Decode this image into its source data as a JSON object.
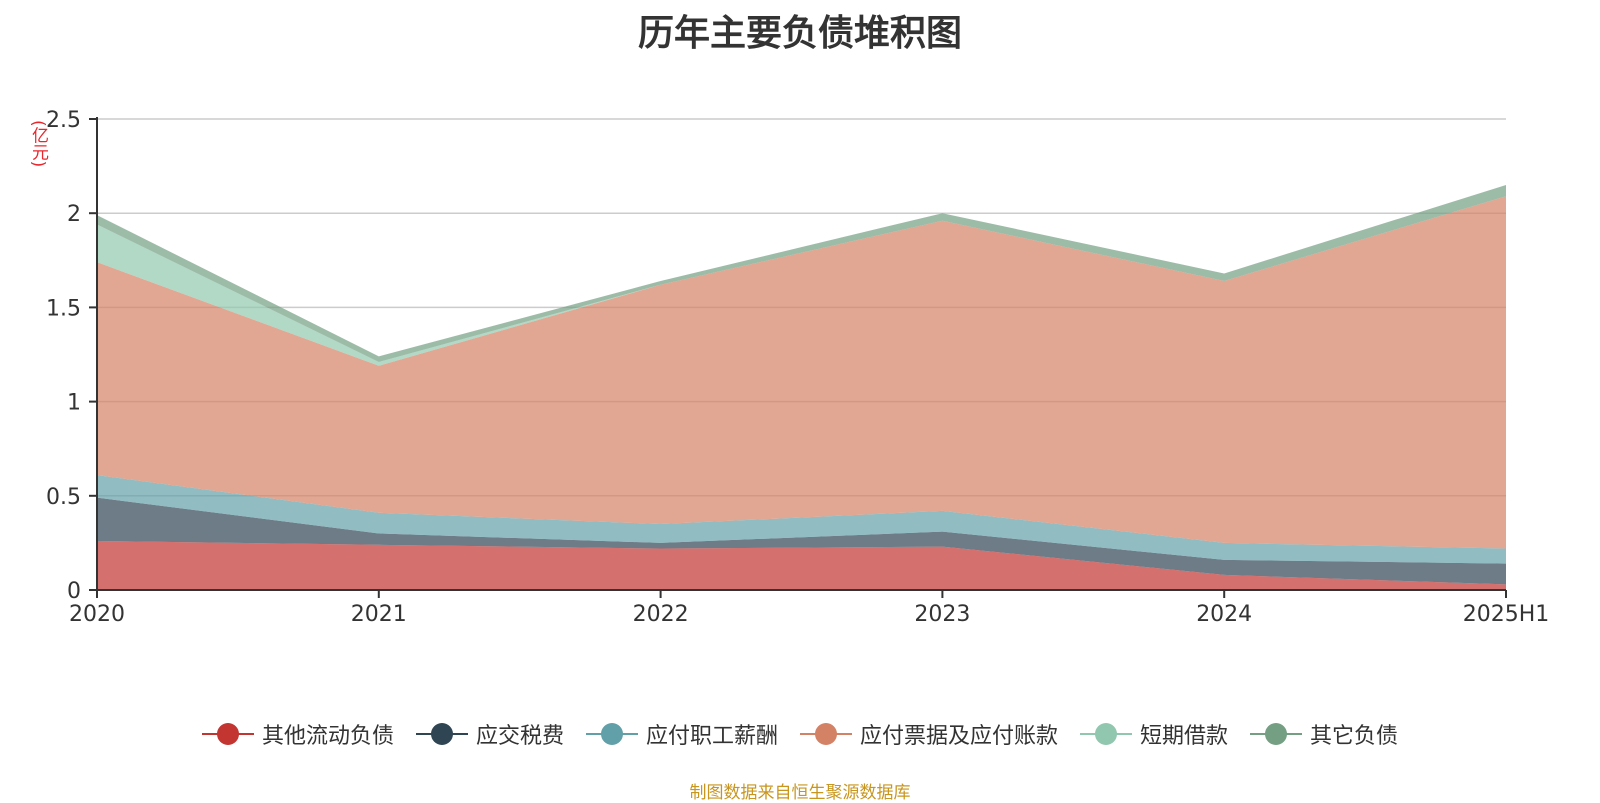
{
  "chart_data": {
    "type": "area",
    "title": "历年主要负债堆积图",
    "unit": "(亿元)",
    "stacked": true,
    "categories": [
      "2020",
      "2021",
      "2022",
      "2023",
      "2024",
      "2025H1"
    ],
    "ylim": [
      0,
      2.5
    ],
    "yticks": [
      "0",
      "0.5",
      "1",
      "1.5",
      "2",
      "2.5"
    ],
    "grid": true,
    "legend_position": "bottom",
    "series": [
      {
        "name": "其他流动负债",
        "color": "#c23531",
        "values": [
          0.26,
          0.24,
          0.22,
          0.23,
          0.08,
          0.03
        ]
      },
      {
        "name": "应交税费",
        "color": "#2f4554",
        "values": [
          0.23,
          0.06,
          0.03,
          0.08,
          0.08,
          0.11
        ]
      },
      {
        "name": "应付职工薪酬",
        "color": "#61a0a8",
        "values": [
          0.12,
          0.11,
          0.1,
          0.11,
          0.09,
          0.08
        ]
      },
      {
        "name": "应付票据及应付账款",
        "color": "#d48265",
        "values": [
          1.13,
          0.78,
          1.27,
          1.54,
          1.39,
          1.87
        ]
      },
      {
        "name": "短期借款",
        "color": "#91c7ae",
        "values": [
          0.2,
          0.02,
          0.0,
          0.0,
          0.0,
          0.0
        ]
      },
      {
        "name": "其它负债",
        "color": "#749f83",
        "values": [
          0.05,
          0.03,
          0.02,
          0.04,
          0.04,
          0.06
        ]
      }
    ]
  },
  "footer": {
    "source": "制图数据来自恒生聚源数据库"
  }
}
